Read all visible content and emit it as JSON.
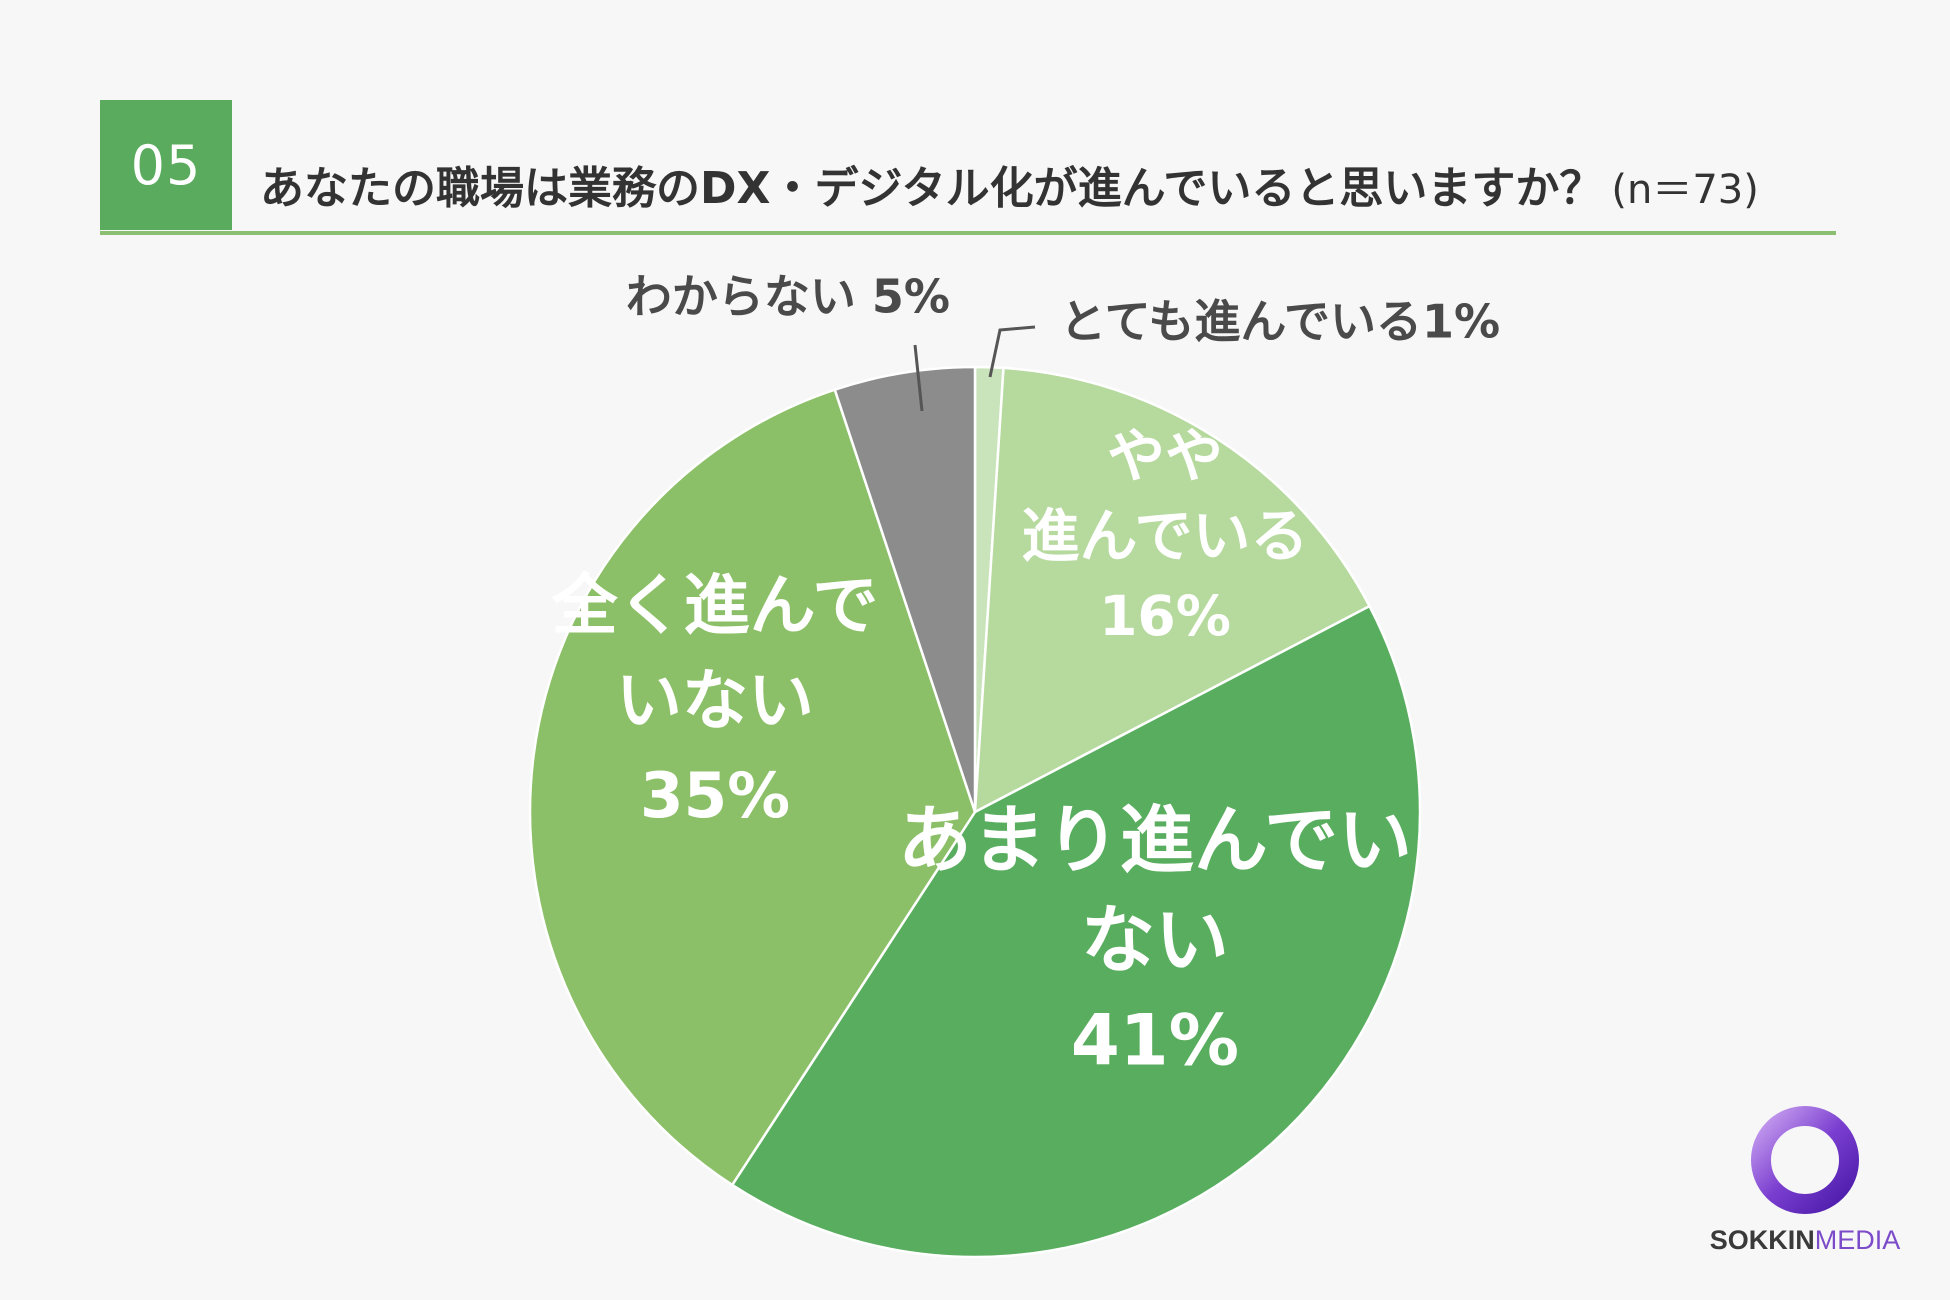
{
  "header": {
    "number": "05",
    "question": "あなたの職場は業務のDX・デジタル化が進んでいると思いますか？",
    "sample": "(n＝73)"
  },
  "colors": {
    "accent": "#5bab5e",
    "rule": "#8dbf73"
  },
  "chart_data": {
    "type": "pie",
    "start_angle_deg": 0,
    "direction": "clockwise",
    "slices": [
      {
        "label": "とても進んでいる",
        "value": 1,
        "label_text": "とても進んでいる1%",
        "color": "#c9e4bb"
      },
      {
        "label": "やや進んでいる",
        "value": 16,
        "label_lines": [
          "やや",
          "進んでいる",
          "16%"
        ],
        "color": "#b6d99e"
      },
      {
        "label": "あまり進んでいない",
        "value": 41,
        "label_lines": [
          "あまり進んでい",
          "ない",
          "41%"
        ],
        "color": "#59ad5f"
      },
      {
        "label": "全く進んでいない",
        "value": 35,
        "label_lines": [
          "全く進んで",
          "いない",
          "35%"
        ],
        "color": "#8cc068"
      },
      {
        "label": "わからない",
        "value": 5,
        "label_text": "わからない 5%",
        "color": "#8c8c8c"
      }
    ]
  },
  "logo": {
    "part1": "SOKKIN",
    "part2": "MEDIA"
  }
}
